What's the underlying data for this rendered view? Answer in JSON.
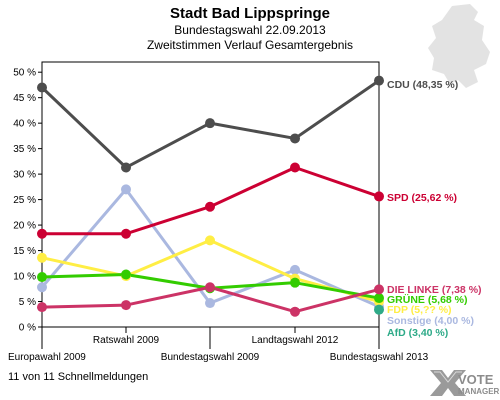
{
  "header": {
    "title": "Stadt Bad Lippspringe",
    "subtitle1": "Bundestagswahl 22.09.2013",
    "subtitle2": "Zweitstimmen Verlauf Gesamtergebnis"
  },
  "footer": {
    "status": "11 von 11 Schnellmeldungen",
    "logo_line1": "VOTE",
    "logo_line2": "MANAGER"
  },
  "chart_data": {
    "type": "line",
    "title": "Stadt Bad Lippspringe",
    "subtitle": "Bundestagswahl 22.09.2013 / Zweitstimmen Verlauf Gesamtergebnis",
    "xlabel": "",
    "ylabel": "",
    "categories": [
      "Europawahl 2009",
      "Ratswahl 2009",
      "Bundestagswahl 2009",
      "Landtagswahl 2012",
      "Bundestagswahl 2013"
    ],
    "ylim": [
      0,
      52
    ],
    "yticks": [
      0,
      5,
      10,
      15,
      20,
      25,
      30,
      35,
      40,
      45,
      50
    ],
    "ytick_labels": [
      "0 %",
      "5 %",
      "10 %",
      "15 %",
      "20 %",
      "25 %",
      "30 %",
      "35 %",
      "40 %",
      "45 %",
      "50 %"
    ],
    "grid": false,
    "series": [
      {
        "name": "CDU",
        "color": "#4d4d4d",
        "values": [
          47.0,
          31.3,
          40.0,
          37.0,
          48.35
        ],
        "label": "CDU (48,35 %)"
      },
      {
        "name": "SPD",
        "color": "#cc0033",
        "values": [
          18.3,
          18.3,
          23.6,
          31.3,
          25.62
        ],
        "label": "SPD (25,62 %)"
      },
      {
        "name": "DIE LINKE",
        "color": "#cc3366",
        "values": [
          3.9,
          4.3,
          7.8,
          3.0,
          7.38
        ],
        "label": "DIE LINKE (7,38 %)"
      },
      {
        "name": "GRÜNE",
        "color": "#33cc00",
        "values": [
          9.8,
          10.3,
          7.6,
          8.7,
          5.68
        ],
        "label": "GRÜNE (5,68 %)"
      },
      {
        "name": "FDP",
        "color": "#ffee44",
        "values": [
          13.6,
          10.0,
          17.0,
          9.5,
          5.0
        ],
        "label": "FDP (5,?? %)"
      },
      {
        "name": "Sonstige",
        "color": "#aab8e0",
        "values": [
          7.8,
          27.0,
          4.7,
          11.2,
          4.0
        ],
        "label": "Sonstige (4,00 %)"
      },
      {
        "name": "AfD",
        "color": "#2eaa88",
        "values": [
          null,
          null,
          null,
          null,
          3.4
        ],
        "label": "AfD (3,40 %)"
      }
    ]
  }
}
